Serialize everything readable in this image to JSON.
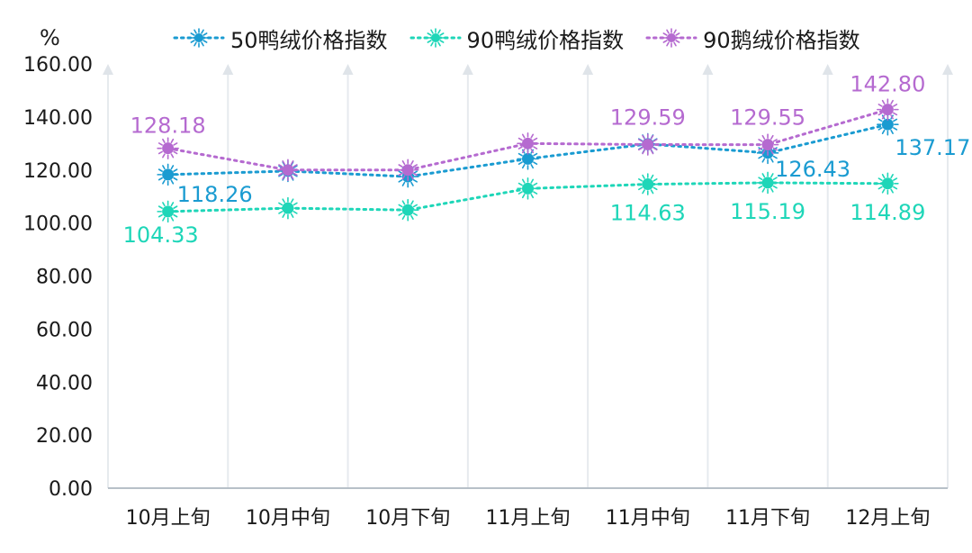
{
  "chart_data": {
    "type": "line",
    "unit_label": "%",
    "categories": [
      "10月上旬",
      "10月中旬",
      "10月下旬",
      "11月上旬",
      "11月中旬",
      "11月下旬",
      "12月上旬"
    ],
    "ylim": [
      0,
      160
    ],
    "y_ticks": [
      "0.00",
      "20.00",
      "40.00",
      "60.00",
      "80.00",
      "100.00",
      "120.00",
      "140.00",
      "160.00"
    ],
    "grid": "vertical",
    "legend_position": "top",
    "series": [
      {
        "name": "50鸭绒价格指数",
        "color": "#1a9bd1",
        "values": [
          118.26,
          119.6,
          117.5,
          124.2,
          129.8,
          126.43,
          137.17
        ],
        "labels": [
          "118.26",
          "",
          "",
          "",
          "",
          "126.43",
          "137.17"
        ]
      },
      {
        "name": "90鸭绒价格指数",
        "color": "#1ed6b8",
        "values": [
          104.33,
          105.6,
          104.9,
          113.0,
          114.63,
          115.19,
          114.89
        ],
        "labels": [
          "104.33",
          "",
          "",
          "",
          "114.63",
          "115.19",
          "114.89"
        ]
      },
      {
        "name": "90鹅绒价格指数",
        "color": "#b56ad0",
        "values": [
          128.18,
          120.0,
          120.0,
          130.0,
          129.59,
          129.55,
          142.8
        ],
        "labels": [
          "128.18",
          "",
          "",
          "",
          "129.59",
          "129.55",
          "142.80"
        ]
      }
    ]
  }
}
